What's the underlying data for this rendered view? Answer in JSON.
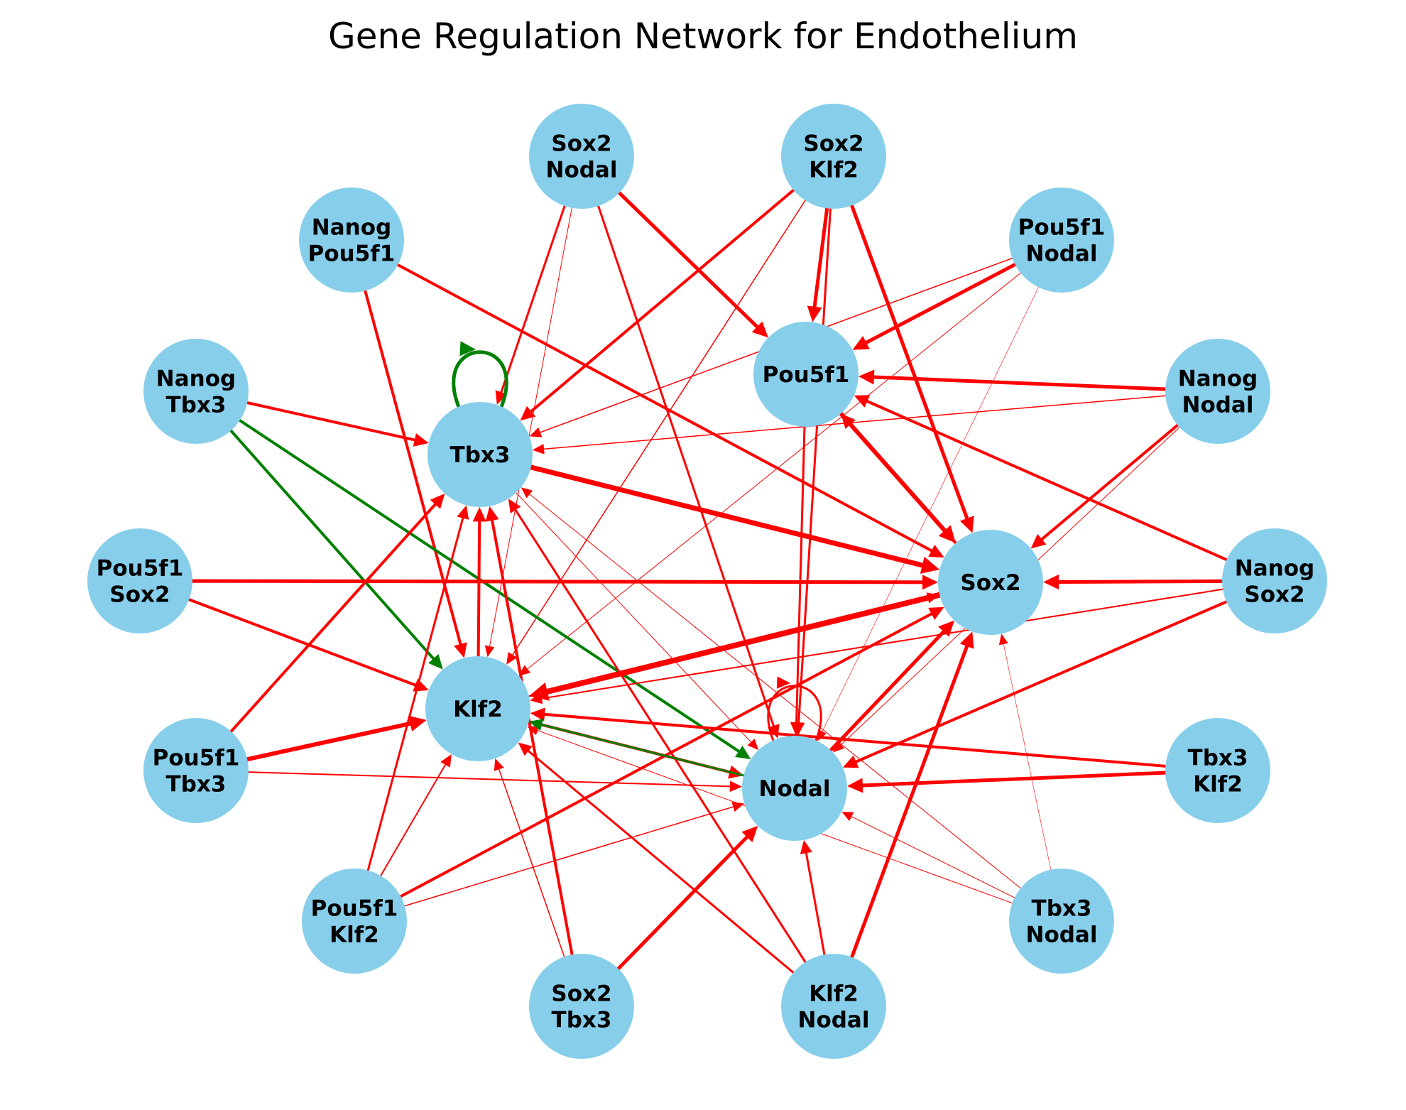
{
  "title": "Gene Regulation Network for Endothelium",
  "colors": {
    "node": "#87CEEB",
    "activation": "#FF0000",
    "self_green": "#008000"
  },
  "nodes": [
    {
      "id": "Tbx3",
      "lines": [
        "Tbx3"
      ]
    },
    {
      "id": "Pou5f1",
      "lines": [
        "Pou5f1"
      ]
    },
    {
      "id": "Sox2",
      "lines": [
        "Sox2"
      ]
    },
    {
      "id": "Klf2",
      "lines": [
        "Klf2"
      ]
    },
    {
      "id": "Nodal",
      "lines": [
        "Nodal"
      ]
    },
    {
      "id": "Sox2_Nodal",
      "lines": [
        "Sox2",
        "Nodal"
      ]
    },
    {
      "id": "Sox2_Klf2",
      "lines": [
        "Sox2",
        "Klf2"
      ]
    },
    {
      "id": "Nanog_Pou5f1",
      "lines": [
        "Nanog",
        "Pou5f1"
      ]
    },
    {
      "id": "Pou5f1_Nodal",
      "lines": [
        "Pou5f1",
        "Nodal"
      ]
    },
    {
      "id": "Nanog_Tbx3",
      "lines": [
        "Nanog",
        "Tbx3"
      ]
    },
    {
      "id": "Nanog_Nodal",
      "lines": [
        "Nanog",
        "Nodal"
      ]
    },
    {
      "id": "Pou5f1_Sox2",
      "lines": [
        "Pou5f1",
        "Sox2"
      ]
    },
    {
      "id": "Nanog_Sox2",
      "lines": [
        "Nanog",
        "Sox2"
      ]
    },
    {
      "id": "Pou5f1_Tbx3",
      "lines": [
        "Pou5f1",
        "Tbx3"
      ]
    },
    {
      "id": "Tbx3_Klf2",
      "lines": [
        "Tbx3",
        "Klf2"
      ]
    },
    {
      "id": "Pou5f1_Klf2",
      "lines": [
        "Pou5f1",
        "Klf2"
      ]
    },
    {
      "id": "Tbx3_Nodal",
      "lines": [
        "Tbx3",
        "Nodal"
      ]
    },
    {
      "id": "Sox2_Tbx3",
      "lines": [
        "Sox2",
        "Tbx3"
      ]
    },
    {
      "id": "Klf2_Nodal",
      "lines": [
        "Klf2",
        "Nodal"
      ]
    }
  ],
  "edges": [
    {
      "from": "Sox2_Nodal",
      "to": "Tbx3",
      "weight": 3,
      "color": "red"
    },
    {
      "from": "Sox2_Nodal",
      "to": "Klf2",
      "weight": 1,
      "color": "red"
    },
    {
      "from": "Sox2_Nodal",
      "to": "Nodal",
      "weight": 3,
      "color": "red"
    },
    {
      "from": "Sox2_Nodal",
      "to": "Pou5f1",
      "weight": 5,
      "color": "red"
    },
    {
      "from": "Sox2_Klf2",
      "to": "Tbx3",
      "weight": 4,
      "color": "red"
    },
    {
      "from": "Sox2_Klf2",
      "to": "Klf2",
      "weight": 1.5,
      "color": "red"
    },
    {
      "from": "Sox2_Klf2",
      "to": "Pou5f1",
      "weight": 5,
      "color": "red"
    },
    {
      "from": "Sox2_Klf2",
      "to": "Nodal",
      "weight": 3,
      "color": "red"
    },
    {
      "from": "Sox2_Klf2",
      "to": "Sox2",
      "weight": 5,
      "color": "red"
    },
    {
      "from": "Nanog_Pou5f1",
      "to": "Klf2",
      "weight": 4,
      "color": "red"
    },
    {
      "from": "Nanog_Pou5f1",
      "to": "Sox2",
      "weight": 4,
      "color": "red"
    },
    {
      "from": "Pou5f1_Nodal",
      "to": "Pou5f1",
      "weight": 5,
      "color": "red"
    },
    {
      "from": "Pou5f1_Nodal",
      "to": "Tbx3",
      "weight": 1.5,
      "color": "red"
    },
    {
      "from": "Pou5f1_Nodal",
      "to": "Klf2",
      "weight": 1,
      "color": "red"
    },
    {
      "from": "Pou5f1_Nodal",
      "to": "Nodal",
      "weight": 0.5,
      "color": "red"
    },
    {
      "from": "Nanog_Tbx3",
      "to": "Tbx3",
      "weight": 4,
      "color": "red"
    },
    {
      "from": "Nanog_Tbx3",
      "to": "Klf2",
      "weight": 4,
      "color": "green"
    },
    {
      "from": "Nanog_Tbx3",
      "to": "Nodal",
      "weight": 4,
      "color": "green"
    },
    {
      "from": "Nanog_Nodal",
      "to": "Pou5f1",
      "weight": 5,
      "color": "red"
    },
    {
      "from": "Nanog_Nodal",
      "to": "Tbx3",
      "weight": 1.5,
      "color": "red"
    },
    {
      "from": "Nanog_Nodal",
      "to": "Sox2",
      "weight": 4,
      "color": "red"
    },
    {
      "from": "Nanog_Nodal",
      "to": "Nodal",
      "weight": 1,
      "color": "red"
    },
    {
      "from": "Pou5f1_Sox2",
      "to": "Sox2",
      "weight": 5,
      "color": "red"
    },
    {
      "from": "Pou5f1_Sox2",
      "to": "Klf2",
      "weight": 4,
      "color": "red"
    },
    {
      "from": "Pou5f1_Sox2",
      "to": "Klf2",
      "weight": 1.5,
      "color": "red"
    },
    {
      "from": "Nanog_Sox2",
      "to": "Sox2",
      "weight": 5,
      "color": "red"
    },
    {
      "from": "Nanog_Sox2",
      "to": "Pou5f1",
      "weight": 4,
      "color": "red"
    },
    {
      "from": "Nanog_Sox2",
      "to": "Nodal",
      "weight": 4,
      "color": "red"
    },
    {
      "from": "Nanog_Sox2",
      "to": "Klf2",
      "weight": 2,
      "color": "red"
    },
    {
      "from": "Pou5f1_Tbx3",
      "to": "Tbx3",
      "weight": 4,
      "color": "red"
    },
    {
      "from": "Pou5f1_Tbx3",
      "to": "Klf2",
      "weight": 6,
      "color": "red"
    },
    {
      "from": "Pou5f1_Tbx3",
      "to": "Nodal",
      "weight": 2,
      "color": "red"
    },
    {
      "from": "Tbx3_Klf2",
      "to": "Klf2",
      "weight": 4,
      "color": "red"
    },
    {
      "from": "Tbx3_Klf2",
      "to": "Nodal",
      "weight": 5,
      "color": "red"
    },
    {
      "from": "Pou5f1_Klf2",
      "to": "Tbx3",
      "weight": 3,
      "color": "red"
    },
    {
      "from": "Pou5f1_Klf2",
      "to": "Klf2",
      "weight": 2,
      "color": "red"
    },
    {
      "from": "Pou5f1_Klf2",
      "to": "Sox2",
      "weight": 4,
      "color": "red"
    },
    {
      "from": "Pou5f1_Klf2",
      "to": "Nodal",
      "weight": 1.5,
      "color": "red"
    },
    {
      "from": "Tbx3_Nodal",
      "to": "Tbx3",
      "weight": 1,
      "color": "red"
    },
    {
      "from": "Tbx3_Nodal",
      "to": "Klf2",
      "weight": 1,
      "color": "red"
    },
    {
      "from": "Tbx3_Nodal",
      "to": "Nodal",
      "weight": 1,
      "color": "red"
    },
    {
      "from": "Tbx3_Nodal",
      "to": "Sox2",
      "weight": 0.5,
      "color": "red"
    },
    {
      "from": "Sox2_Tbx3",
      "to": "Tbx3",
      "weight": 4,
      "color": "red"
    },
    {
      "from": "Sox2_Tbx3",
      "to": "Klf2",
      "weight": 1.5,
      "color": "red"
    },
    {
      "from": "Sox2_Tbx3",
      "to": "Nodal",
      "weight": 5,
      "color": "red"
    },
    {
      "from": "Klf2_Nodal",
      "to": "Tbx3",
      "weight": 3,
      "color": "red"
    },
    {
      "from": "Klf2_Nodal",
      "to": "Klf2",
      "weight": 3,
      "color": "red"
    },
    {
      "from": "Klf2_Nodal",
      "to": "Nodal",
      "weight": 3,
      "color": "red"
    },
    {
      "from": "Klf2_Nodal",
      "to": "Sox2",
      "weight": 5,
      "color": "red"
    },
    {
      "from": "Tbx3",
      "to": "Sox2",
      "weight": 7,
      "color": "red"
    },
    {
      "from": "Pou5f1",
      "to": "Sox2",
      "weight": 6,
      "color": "red"
    },
    {
      "from": "Sox2",
      "to": "Pou5f1",
      "weight": 4,
      "color": "red"
    },
    {
      "from": "Sox2",
      "to": "Klf2",
      "weight": 8,
      "color": "red"
    },
    {
      "from": "Klf2",
      "to": "Sox2",
      "weight": 2,
      "color": "red"
    },
    {
      "from": "Nodal",
      "to": "Sox2",
      "weight": 5,
      "color": "red"
    },
    {
      "from": "Klf2",
      "to": "Nodal",
      "weight": 4,
      "color": "red"
    },
    {
      "from": "Nodal",
      "to": "Klf2",
      "weight": 3,
      "color": "green"
    },
    {
      "from": "Klf2",
      "to": "Tbx3",
      "weight": 4,
      "color": "red"
    },
    {
      "from": "Pou5f1",
      "to": "Nodal",
      "weight": 3,
      "color": "red"
    },
    {
      "from": "Tbx3",
      "to": "Nodal",
      "weight": 1,
      "color": "red"
    },
    {
      "from": "Tbx3",
      "to": "Tbx3",
      "weight": 5,
      "color": "green"
    },
    {
      "from": "Nodal",
      "to": "Nodal",
      "weight": 3,
      "color": "red"
    }
  ]
}
